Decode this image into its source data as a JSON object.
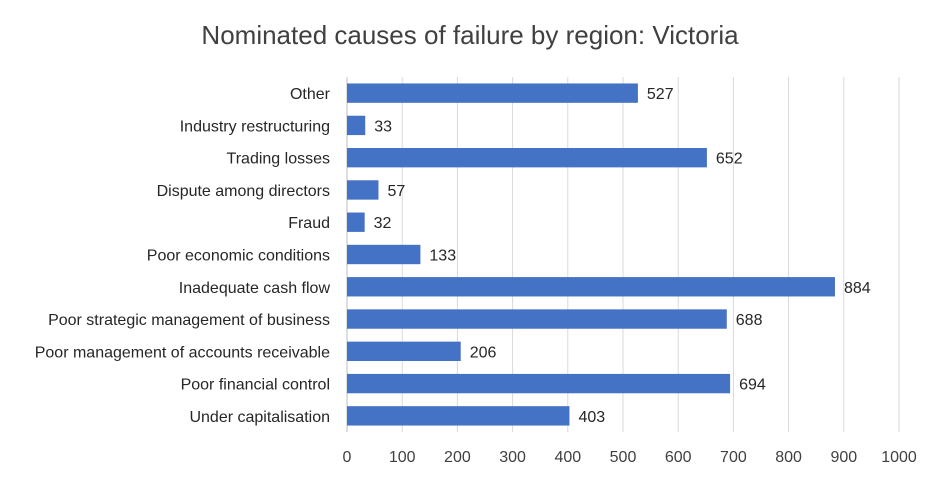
{
  "chart_data": {
    "type": "bar",
    "orientation": "horizontal",
    "title": "Nominated causes of failure by region: Victoria",
    "categories": [
      "Other",
      "Industry restructuring",
      "Trading losses",
      "Dispute among directors",
      "Fraud",
      "Poor economic conditions",
      "Inadequate cash flow",
      "Poor strategic management of business",
      "Poor management of accounts receivable",
      "Poor financial control",
      "Under capitalisation"
    ],
    "values": [
      527,
      33,
      652,
      57,
      32,
      133,
      884,
      688,
      206,
      694,
      403
    ],
    "xlim": [
      0,
      1000
    ],
    "xticks": [
      0,
      100,
      200,
      300,
      400,
      500,
      600,
      700,
      800,
      900,
      1000
    ],
    "grid": true,
    "legend": "none",
    "bar_color": "#4472c4"
  }
}
